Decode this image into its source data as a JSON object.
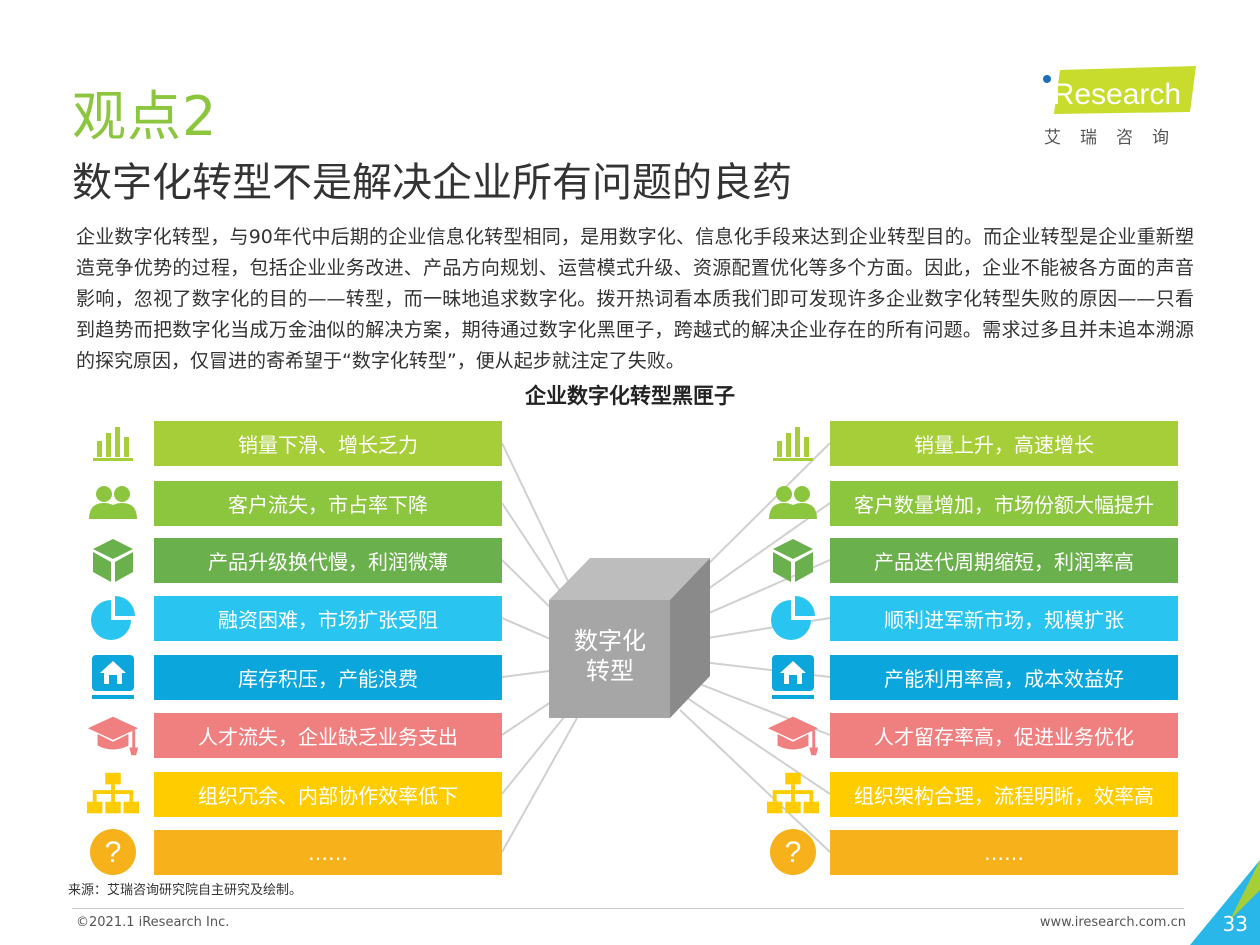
{
  "header": {
    "kicker": "观点2",
    "headline": "数字化转型不是解决企业所有问题的良药",
    "logo_text": "iResearch",
    "logo_sub": "艾瑞咨询"
  },
  "body": {
    "paragraph": "企业数字化转型，与90年代中后期的企业信息化转型相同，是用数字化、信息化手段来达到企业转型目的。而企业转型是企业重新塑造竞争优势的过程，包括企业业务改进、产品方向规划、运营模式升级、资源配置优化等多个方面。因此，企业不能被各方面的声音影响，忽视了数字化的目的——转型，而一昧地追求数字化。拨开热词看本质我们即可发现许多企业数字化转型失败的原因——只看到趋势而把数字化当成万金油似的解决方案，期待通过数字化黑匣子，跨越式的解决企业存在的所有问题。需求过多且并未追本溯源的探究原因，仅冒进的寄希望于“数字化转型”，便从起步就注定了失败。"
  },
  "diagram": {
    "title": "企业数字化转型黑匣子",
    "center_label": "数字化\n转型",
    "rows": [
      {
        "icon": "bar-chart-icon",
        "color": "#a6ce39",
        "left": "销量下滑、增长乏力",
        "right": "销量上升，高速增长"
      },
      {
        "icon": "users-icon",
        "color": "#8cc63f",
        "left": "客户流失，市占率下降",
        "right": "客户数量增加，市场份额大幅提升"
      },
      {
        "icon": "box-icon",
        "color": "#6ab04c",
        "left": "产品升级换代慢，利润微薄",
        "right": "产品迭代周期缩短，利润率高"
      },
      {
        "icon": "pie-chart-icon",
        "color": "#29c5f0",
        "left": "融资困难，市场扩张受阻",
        "right": "顺利进军新市场，规模扩张"
      },
      {
        "icon": "home-icon",
        "color": "#0aa6dc",
        "left": "库存积压，产能浪费",
        "right": "产能利用率高，成本效益好"
      },
      {
        "icon": "graduation-cap-icon",
        "color": "#f08080",
        "left": "人才流失，企业缺乏业务支出",
        "right": "人才留存率高，促进业务优化"
      },
      {
        "icon": "org-chart-icon",
        "color": "#ffcc00",
        "left": "组织冗余、内部协作效率低下",
        "right": "组织架构合理，流程明晰，效率高"
      },
      {
        "icon": "question-icon",
        "color": "#f7b21b",
        "left": "……",
        "right": "……"
      }
    ]
  },
  "footer": {
    "source": "来源：艾瑞咨询研究院自主研究及绘制。",
    "copyright": "©2021.1 iResearch Inc.",
    "website": "www.iresearch.com.cn",
    "page_number": "33"
  }
}
